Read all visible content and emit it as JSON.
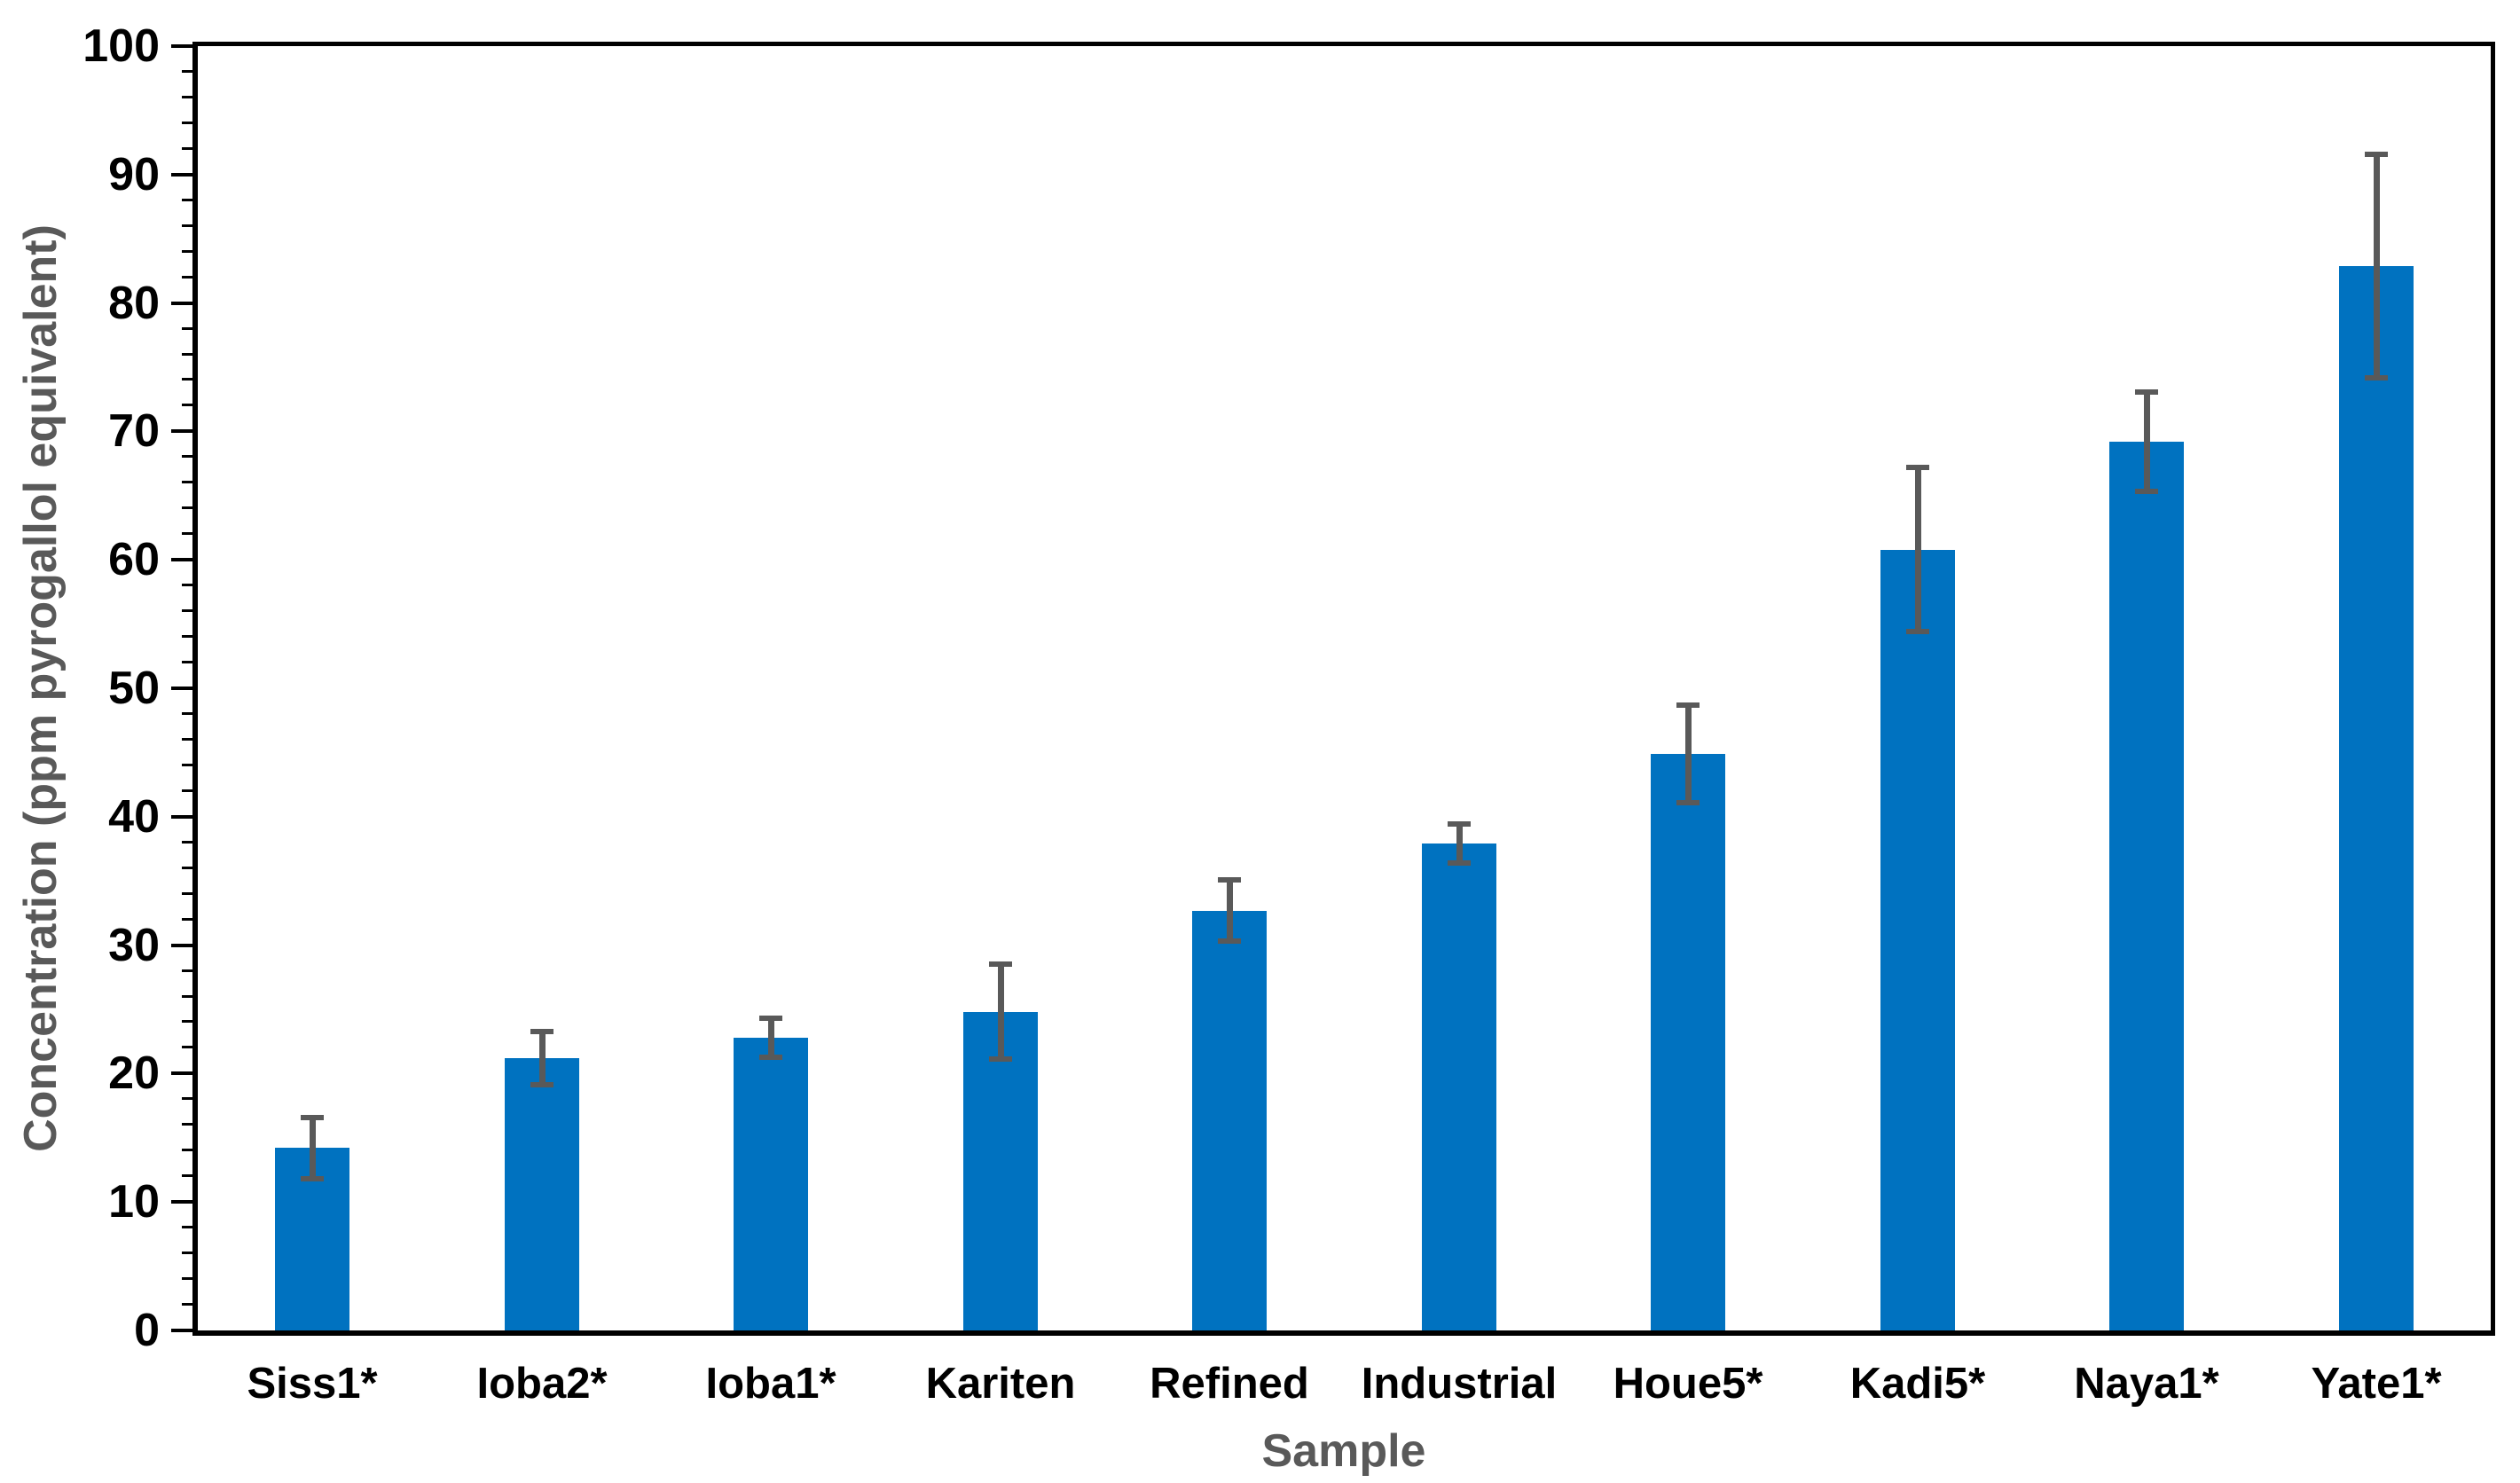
{
  "chart_data": {
    "type": "bar",
    "title": "",
    "xlabel": "Sample",
    "ylabel": "Concentration (ppm pyrogallol equivalent)",
    "categories": [
      "Siss1*",
      "Ioba2*",
      "Ioba1*",
      "Kariten",
      "Refined",
      "Industrial",
      "Houe5*",
      "Kadi5*",
      "Naya1*",
      "Yate1*"
    ],
    "series": [
      {
        "name": "Concentration (ppm pyrogallol equivalent)",
        "values": [
          14.2,
          21.2,
          22.8,
          24.8,
          32.7,
          37.9,
          44.9,
          60.8,
          69.2,
          82.9
        ],
        "error_bars": [
          2.4,
          2.1,
          1.5,
          3.7,
          2.4,
          1.5,
          3.8,
          6.4,
          3.9,
          8.7
        ]
      }
    ],
    "ylim": [
      0,
      100
    ],
    "ytick_major_step": 10,
    "ytick_minor_step": 2,
    "ytick_labels": [
      "0",
      "10",
      "20",
      "30",
      "40",
      "50",
      "60",
      "70",
      "80",
      "90",
      "100"
    ],
    "grid": false,
    "legend_position": "none",
    "bar_color": "#0072C0",
    "error_bar_color": "#595959",
    "axis_color": "#000000",
    "axis_title_color": "#595959"
  }
}
